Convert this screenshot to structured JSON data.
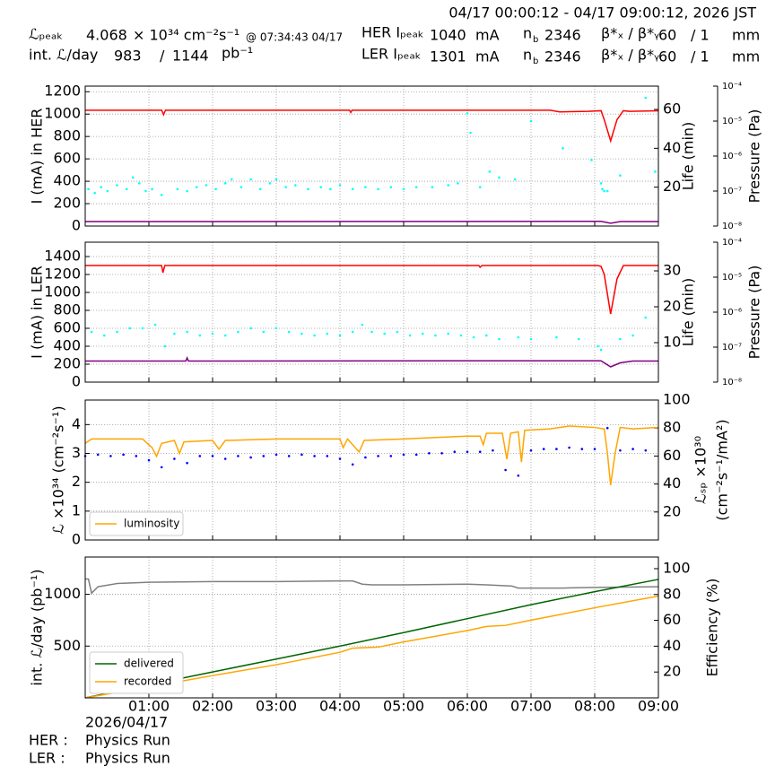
{
  "header": {
    "time_range": "04/17 00:00:12 - 04/17 09:00:12, 2026 JST",
    "row1": {
      "label": "ℒₚₑₐₖ",
      "value": "4.068",
      "unit": "× 10³⁴ cm⁻²s⁻¹",
      "note": "@ 07:34:43 04/17",
      "ring": "HER Iₚₑₐₖ",
      "current": "1040",
      "current_unit": "mA",
      "nb_base": "n",
      "nb_sub": "b",
      "bunches": "2346",
      "beta_label": "β*ₓ / β*ᵧ",
      "beta_x": "60",
      "beta_y": "/ 1",
      "beta_unit": "mm"
    },
    "row2": {
      "label": "int. ℒ/day",
      "value": "983",
      "sep": "/",
      "value2": "1144",
      "unit": "pb⁻¹",
      "ring": "LER Iₚₑₐₖ",
      "current": "1301",
      "current_unit": "mA",
      "nb_base": "n",
      "nb_sub": "b",
      "bunches": "2346",
      "beta_label": "β*ₓ / β*ᵧ",
      "beta_x": "60",
      "beta_y": "/ 1",
      "beta_unit": "mm"
    }
  },
  "chart_data": [
    {
      "type": "line",
      "ylabel": "I (mA) in HER",
      "y2label": "Life (min)",
      "y3label": "Pressure (Pa)",
      "ylim": [
        0,
        1250
      ],
      "yticks": [
        0,
        200,
        400,
        600,
        800,
        1000,
        1200
      ],
      "y2lim": [
        0,
        72
      ],
      "y2ticks": [
        20,
        40,
        60
      ],
      "y3scale": "log",
      "y3lim": [
        1e-08,
        0.0001
      ],
      "y3ticks": [
        {
          "value": 1e-08,
          "label": "10⁻⁸"
        },
        {
          "value": 1e-07,
          "label": "10⁻⁷"
        },
        {
          "value": 1e-06,
          "label": "10⁻⁶"
        },
        {
          "value": 1e-05,
          "label": "10⁻⁵"
        },
        {
          "value": 0.0001,
          "label": "10⁻⁴"
        }
      ],
      "grid": true,
      "series": [
        {
          "type": "scatter",
          "color": "#00ffff",
          "axis": "y2",
          "x": [
            0.05,
            0.15,
            0.25,
            0.35,
            0.5,
            0.65,
            0.75,
            0.85,
            0.95,
            1.05,
            1.2,
            1.45,
            1.6,
            1.75,
            1.9,
            2.05,
            2.2,
            2.3,
            2.45,
            2.6,
            2.75,
            2.9,
            3.0,
            3.15,
            3.3,
            3.5,
            3.7,
            3.85,
            4.0,
            4.2,
            4.4,
            4.6,
            4.8,
            5.0,
            5.2,
            5.45,
            5.7,
            5.85,
            6.0,
            6.05,
            6.2,
            6.35,
            6.5,
            6.75,
            7.0,
            7.5,
            7.95,
            8.1,
            8.12,
            8.15,
            8.2,
            8.4,
            8.8,
            8.95
          ],
          "values": [
            19,
            17,
            20,
            18,
            21,
            19,
            25,
            22,
            18,
            19,
            16,
            19,
            18,
            20,
            21,
            19,
            22,
            24,
            20,
            24,
            19,
            22,
            24,
            20,
            21,
            19,
            20,
            19,
            21,
            19,
            20,
            19,
            20,
            19,
            20,
            20,
            21,
            22,
            58,
            48,
            20,
            28,
            25,
            24,
            54,
            40,
            34,
            22,
            19,
            18,
            18,
            26,
            66,
            28
          ]
        },
        {
          "type": "line",
          "color": "#ff0000",
          "x": [
            0,
            1.2,
            1.23,
            1.26,
            4.15,
            4.17,
            4.19,
            7.3,
            7.45,
            7.9,
            8.1,
            8.15,
            8.25,
            8.35,
            8.45,
            8.55,
            9
          ],
          "values": [
            1035,
            1035,
            995,
            1035,
            1035,
            1015,
            1035,
            1035,
            1020,
            1025,
            1030,
            950,
            760,
            950,
            1030,
            1025,
            1030
          ]
        },
        {
          "type": "line",
          "color": "#800080",
          "x": [
            0,
            8.1,
            8.25,
            8.4,
            9
          ],
          "values": [
            40,
            42,
            25,
            40,
            40
          ]
        }
      ]
    },
    {
      "type": "line",
      "ylabel": "I (mA) in LER",
      "y2label": "Life (min)",
      "y3label": "Pressure (Pa)",
      "ylim": [
        0,
        1560
      ],
      "yticks": [
        0,
        200,
        400,
        600,
        800,
        1000,
        1200,
        1400
      ],
      "y2lim": [
        -1,
        38
      ],
      "y2ticks": [
        10,
        20,
        30
      ],
      "y3scale": "log",
      "y3lim": [
        1e-08,
        0.0001
      ],
      "y3ticks": [
        {
          "value": 1e-08,
          "label": "10⁻⁸"
        },
        {
          "value": 1e-07,
          "label": "10⁻⁷"
        },
        {
          "value": 1e-06,
          "label": "10⁻⁶"
        },
        {
          "value": 1e-05,
          "label": "10⁻⁵"
        },
        {
          "value": 0.0001,
          "label": "10⁻⁴"
        }
      ],
      "grid": true,
      "series": [
        {
          "type": "scatter",
          "color": "#00ffff",
          "axis": "y2",
          "x": [
            0.1,
            0.3,
            0.5,
            0.7,
            0.9,
            1.1,
            1.25,
            1.4,
            1.6,
            1.8,
            2.0,
            2.2,
            2.4,
            2.6,
            2.8,
            3.0,
            3.2,
            3.4,
            3.6,
            3.8,
            4.0,
            4.2,
            4.35,
            4.5,
            4.7,
            4.9,
            5.1,
            5.3,
            5.5,
            5.7,
            5.9,
            6.1,
            6.3,
            6.5,
            6.8,
            7.0,
            7.4,
            7.75,
            8.05,
            8.1,
            8.4,
            8.6,
            8.8
          ],
          "values": [
            13,
            12,
            13,
            14,
            14,
            15,
            9,
            12.5,
            13,
            12,
            12.5,
            12,
            13,
            14,
            13,
            14,
            13,
            12.5,
            12,
            12.5,
            12,
            13,
            15,
            13,
            12.5,
            13,
            12,
            12.5,
            12,
            12.5,
            12,
            11.5,
            12,
            11,
            11.5,
            11,
            11.5,
            11,
            9,
            8,
            11,
            12,
            17
          ]
        },
        {
          "type": "line",
          "color": "#ff0000",
          "x": [
            0,
            1.2,
            1.22,
            1.25,
            6.18,
            6.2,
            6.23,
            8.05,
            8.1,
            8.15,
            8.25,
            8.35,
            8.45,
            9
          ],
          "values": [
            1300,
            1300,
            1220,
            1300,
            1300,
            1280,
            1300,
            1300,
            1290,
            1200,
            760,
            1150,
            1300,
            1300
          ]
        },
        {
          "type": "line",
          "color": "#800080",
          "x": [
            0,
            1.58,
            1.6,
            1.62,
            8.1,
            8.25,
            8.4,
            8.6,
            9
          ],
          "values": [
            235,
            235,
            270,
            235,
            238,
            170,
            215,
            235,
            235
          ]
        }
      ]
    },
    {
      "type": "line",
      "ylabel": "ℒ ×10³⁴ (cm⁻²s⁻¹)",
      "y2label": [
        "ℒₛₚ ×10³⁰",
        "(cm⁻²s⁻¹/mA²)"
      ],
      "ylim": [
        0,
        4.85
      ],
      "yticks": [
        0,
        1,
        2,
        3,
        4
      ],
      "y2lim": [
        0,
        100
      ],
      "y2ticks": [
        20,
        40,
        60,
        80,
        100
      ],
      "grid": true,
      "legend": "lower left",
      "series": [
        {
          "type": "scatter",
          "color": "#0000ff",
          "axis": "y2",
          "x": [
            0.0,
            0.2,
            0.4,
            0.6,
            0.8,
            1.0,
            1.2,
            1.4,
            1.6,
            1.8,
            2.0,
            2.2,
            2.4,
            2.6,
            2.8,
            3.0,
            3.2,
            3.4,
            3.6,
            3.8,
            4.0,
            4.2,
            4.4,
            4.6,
            4.8,
            5.0,
            5.2,
            5.4,
            5.6,
            5.8,
            6.0,
            6.2,
            6.4,
            6.6,
            6.8,
            7.0,
            7.2,
            7.4,
            7.6,
            7.8,
            8.0,
            8.2,
            8.4,
            8.6,
            8.8
          ],
          "values": [
            60,
            61,
            60,
            61,
            60,
            57,
            52,
            58,
            55,
            60,
            60,
            58,
            60,
            59,
            60,
            61,
            60,
            61,
            60,
            60,
            58,
            54,
            59,
            60,
            60,
            61,
            61,
            62,
            62,
            63,
            63,
            63,
            64,
            50,
            46,
            64,
            65,
            65,
            66,
            65,
            65,
            80,
            64,
            65,
            64
          ]
        },
        {
          "type": "line",
          "name": "luminosity",
          "color": "#ffa500",
          "x": [
            0,
            0.1,
            0.5,
            0.9,
            1.05,
            1.12,
            1.2,
            1.4,
            1.48,
            1.55,
            2.0,
            2.1,
            2.2,
            3.0,
            3.5,
            4.0,
            4.05,
            4.12,
            4.3,
            4.38,
            5.0,
            5.5,
            6.0,
            6.2,
            6.25,
            6.3,
            6.55,
            6.62,
            6.68,
            6.8,
            6.85,
            6.9,
            7.3,
            7.6,
            8.0,
            8.15,
            8.2,
            8.25,
            8.32,
            8.4,
            8.6,
            9.0
          ],
          "values": [
            3.35,
            3.5,
            3.5,
            3.5,
            3.2,
            2.9,
            3.35,
            3.45,
            3.0,
            3.4,
            3.45,
            3.15,
            3.45,
            3.5,
            3.5,
            3.5,
            3.2,
            3.5,
            3.05,
            3.45,
            3.5,
            3.55,
            3.6,
            3.6,
            3.3,
            3.7,
            3.7,
            2.8,
            3.7,
            3.75,
            2.7,
            3.8,
            3.85,
            3.95,
            3.9,
            3.85,
            3.0,
            1.9,
            3.0,
            3.9,
            3.85,
            3.9
          ]
        }
      ]
    },
    {
      "type": "line",
      "ylabel": "int. ℒ/day (pb⁻¹)",
      "y2label": "Efficiency (%)",
      "xlim": [
        0,
        9
      ],
      "xticks": [
        {
          "value": 1,
          "label": "01:00"
        },
        {
          "value": 2,
          "label": "02:00"
        },
        {
          "value": 3,
          "label": "03:00"
        },
        {
          "value": 4,
          "label": "04:00"
        },
        {
          "value": 5,
          "label": "05:00"
        },
        {
          "value": 6,
          "label": "06:00"
        },
        {
          "value": 7,
          "label": "07:00"
        },
        {
          "value": 8,
          "label": "08:00"
        },
        {
          "value": 9,
          "label": "09:00"
        }
      ],
      "ylim": [
        0,
        1360
      ],
      "yticks": [
        500,
        1000
      ],
      "y2lim": [
        0,
        109
      ],
      "y2ticks": [
        20,
        40,
        60,
        80,
        100
      ],
      "grid": true,
      "legend": "lower left",
      "series": [
        {
          "type": "line",
          "color": "#808080",
          "axis": "y2",
          "x": [
            0,
            0.05,
            0.1,
            0.2,
            0.5,
            1,
            2,
            3,
            4,
            4.2,
            4.35,
            4.5,
            5,
            6,
            6.3,
            6.7,
            6.8,
            7.5,
            8,
            9
          ],
          "values": [
            92,
            92,
            81,
            86,
            88.5,
            89.5,
            90,
            90,
            90.5,
            90.5,
            88,
            87.5,
            87.5,
            88,
            87.5,
            86.5,
            85,
            85,
            85.5,
            86
          ]
        },
        {
          "type": "line",
          "name": "delivered",
          "color": "#006400",
          "x": [
            0,
            1,
            2,
            3,
            4,
            5,
            6,
            7,
            8,
            9
          ],
          "values": [
            0,
            125,
            250,
            375,
            500,
            630,
            765,
            900,
            1025,
            1144
          ]
        },
        {
          "type": "line",
          "name": "recorded",
          "color": "#ffa500",
          "x": [
            0,
            1,
            2,
            3,
            4,
            4.2,
            4.6,
            5,
            6,
            6.3,
            6.6,
            7,
            8,
            9
          ],
          "values": [
            0,
            105,
            215,
            320,
            440,
            480,
            490,
            540,
            650,
            690,
            700,
            750,
            870,
            983
          ]
        }
      ]
    }
  ],
  "footer": {
    "date": "2026/04/17",
    "her_label": "HER :",
    "her_mode": "Physics Run",
    "ler_label": "LER :",
    "ler_mode": "Physics Run"
  }
}
